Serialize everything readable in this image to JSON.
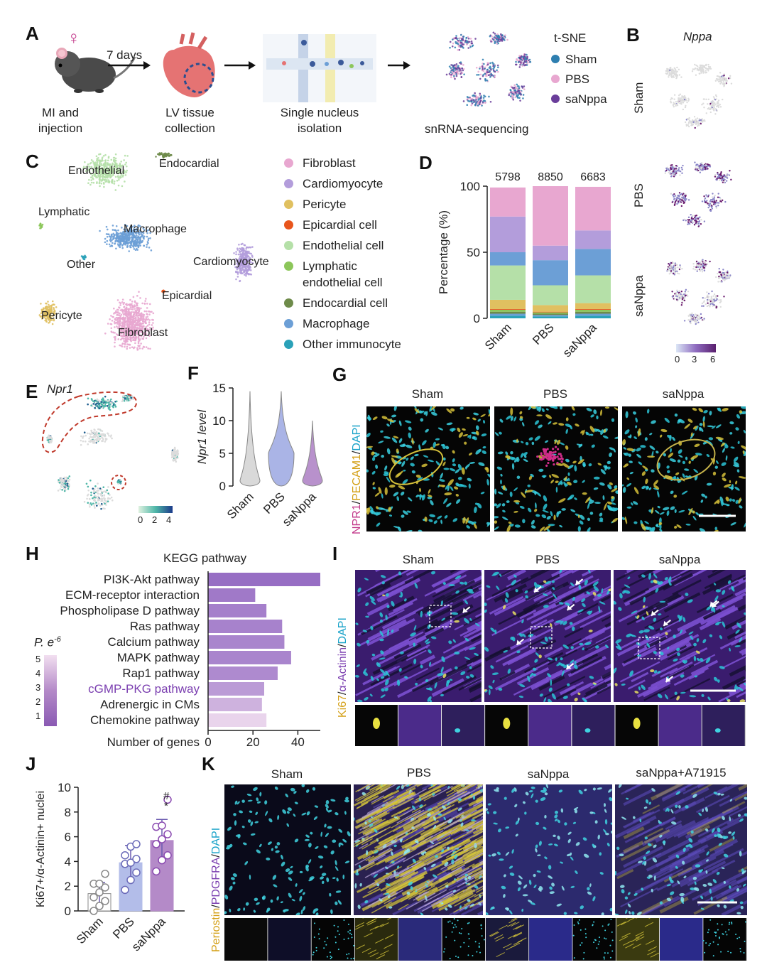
{
  "panelA": {
    "label": "A",
    "steps": [
      "MI and injection",
      "LV tissue collection",
      "Single nucleus isolation",
      "snRNA-sequencing"
    ],
    "arrow_label": "7 days",
    "female_symbol": "♀",
    "tsne_title": "t-SNE",
    "legend": [
      {
        "name": "Sham",
        "color": "#2e7fb0"
      },
      {
        "name": "PBS",
        "color": "#e8a7d0"
      },
      {
        "name": "saNppa",
        "color": "#6a3d9a"
      }
    ]
  },
  "panelB": {
    "label": "B",
    "gene": "Nppa",
    "rows": [
      "Sham",
      "PBS",
      "saNppa"
    ],
    "scale_ticks": [
      "0",
      "3",
      "6"
    ]
  },
  "panelC": {
    "label": "C",
    "cluster_labels": [
      "Endothelial",
      "Endocardial",
      "Lymphatic",
      "Macrophage",
      "Other",
      "Cardiomyocyte",
      "Epicardial",
      "Pericyte",
      "Fibroblast"
    ],
    "legend": [
      {
        "name": "Fibroblast",
        "color": "#e8a7d0"
      },
      {
        "name": "Cardiomyocyte",
        "color": "#b39ddb"
      },
      {
        "name": "Pericyte",
        "color": "#e0c060"
      },
      {
        "name": "Epicardial cell",
        "color": "#e8551c"
      },
      {
        "name": "Endothelial cell",
        "color": "#b5e0a8"
      },
      {
        "name": "Lymphatic\nendothelial cell",
        "color": "#8cc65a"
      },
      {
        "name": "Endocardial cell",
        "color": "#6e8b4a"
      },
      {
        "name": "Macrophage",
        "color": "#6c9fd6"
      },
      {
        "name": "Other immunocyte",
        "color": "#2aa1b8"
      }
    ]
  },
  "panelD": {
    "label": "D",
    "counts": [
      "5798",
      "8850",
      "6683"
    ]
  },
  "panelE": {
    "label": "E",
    "gene": "Npr1",
    "scale_ticks": [
      "0",
      "2",
      "4"
    ]
  },
  "panelF": {
    "label": "F",
    "ylabel": "Npr1 level"
  },
  "panelG": {
    "label": "G",
    "columns": [
      "Sham",
      "PBS",
      "saNppa"
    ],
    "side_label": [
      "NPR1",
      "/",
      "PECAM1",
      "/",
      "DAPI"
    ]
  },
  "panelH": {
    "label": "H",
    "title": "KEGG pathway",
    "legend_title": "P. e",
    "legend_exp": "-6",
    "legend_ticks": [
      "5",
      "4",
      "3",
      "2",
      "1"
    ]
  },
  "panelI": {
    "label": "I",
    "columns": [
      "Sham",
      "PBS",
      "saNppa"
    ],
    "side_label": [
      "Ki67",
      "/",
      "α-Actinin",
      "/",
      "DAPI"
    ]
  },
  "panelJ": {
    "label": "J",
    "sig_marks": [
      "#",
      "*"
    ]
  },
  "panelK": {
    "label": "K",
    "columns": [
      "Sham",
      "PBS",
      "saNppa",
      "saNppa+A71915"
    ],
    "side_label": [
      "Periostin",
      "/",
      "PDGFRA",
      "/",
      "DAPI"
    ]
  },
  "chart_data": [
    {
      "id": "D",
      "type": "bar",
      "stacked": true,
      "categories": [
        "Sham",
        "PBS",
        "saNppa"
      ],
      "ylabel": "Percentage (%)",
      "ylim": [
        0,
        100
      ],
      "yticks": [
        0,
        50,
        100
      ],
      "series": [
        {
          "name": "Other immunocyte",
          "color": "#2aa1b8",
          "values": [
            2,
            1.5,
            2
          ]
        },
        {
          "name": "Macrophage",
          "color": "#6c9fd6",
          "values": [
            1.5,
            1,
            1.5
          ]
        },
        {
          "name": "Endocardial cell",
          "color": "#6e8b4a",
          "values": [
            1.5,
            1,
            1.5
          ]
        },
        {
          "name": "Lymphatic endothelial cell",
          "color": "#8cc65a",
          "values": [
            1.5,
            1,
            1.5
          ]
        },
        {
          "name": "Epicardial cell",
          "color": "#e8551c",
          "values": [
            0.5,
            0.5,
            0.5
          ]
        },
        {
          "name": "Pericyte",
          "color": "#e0c060",
          "values": [
            7,
            5,
            4.5
          ]
        },
        {
          "name": "Endothelial cell",
          "color": "#b5e0a8",
          "values": [
            26,
            15,
            21
          ]
        },
        {
          "name": "Macrophage (2)",
          "color": "#6c9fd6",
          "values": [
            10,
            19,
            20
          ]
        },
        {
          "name": "Cardiomyocyte",
          "color": "#b39ddb",
          "values": [
            27,
            11,
            14
          ]
        },
        {
          "name": "Fibroblast",
          "color": "#e8a7d0",
          "values": [
            22,
            45,
            33
          ]
        }
      ]
    },
    {
      "id": "F",
      "type": "violin",
      "categories": [
        "Sham",
        "PBS",
        "saNppa"
      ],
      "ylabel": "Npr1 level",
      "ylim": [
        0,
        15
      ],
      "yticks": [
        0,
        5,
        10,
        15
      ],
      "colors": [
        "#d9d9d9",
        "#aab4e6",
        "#b891cc"
      ],
      "max": [
        14.5,
        14.5,
        10
      ],
      "center": [
        0.8,
        5.0,
        0.8
      ]
    },
    {
      "id": "H",
      "type": "bar",
      "orientation": "horizontal",
      "categories": [
        "PI3K-Akt pathway",
        "ECM-receptor interaction",
        "Phospholipase D pathway",
        "Ras pathway",
        "Calcium pathway",
        "MAPK pathway",
        "Rap1 pathway",
        "cGMP-PKG pathway",
        "Adrenergic in CMs",
        "Chemokine pathway"
      ],
      "highlight": "cGMP-PKG pathway",
      "values": [
        50,
        21,
        26,
        33,
        34,
        37,
        31,
        25,
        24,
        26
      ],
      "pvalue": [
        5,
        4.6,
        4.4,
        4.3,
        4.2,
        4.2,
        4.0,
        3.4,
        2.6,
        1.4
      ],
      "xlabel": "Number of genes",
      "xlim": [
        0,
        50
      ],
      "xticks": [
        0,
        20,
        40
      ]
    },
    {
      "id": "J",
      "type": "bar",
      "categories": [
        "Sham",
        "PBS",
        "saNppa"
      ],
      "values": [
        1.4,
        3.9,
        5.7
      ],
      "sd": [
        0.9,
        1.4,
        1.7
      ],
      "ylabel": "Ki67+/α-Actinin+ nuclei",
      "ylim": [
        0,
        10
      ],
      "yticks": [
        0,
        2,
        4,
        6,
        8,
        10
      ],
      "colors": [
        "#ffffff",
        "#b3bde9",
        "#b48ac8"
      ],
      "points": [
        [
          0,
          0.4,
          0.8,
          1.1,
          1.5,
          1.9,
          2.2,
          2.2,
          3.0
        ],
        [
          1.7,
          2.5,
          3.1,
          3.8,
          3.9,
          4.2,
          4.5,
          5.2,
          5.4
        ],
        [
          3.2,
          4.1,
          4.5,
          5.4,
          5.8,
          6.2,
          6.8,
          6.9,
          9.0
        ]
      ]
    }
  ]
}
